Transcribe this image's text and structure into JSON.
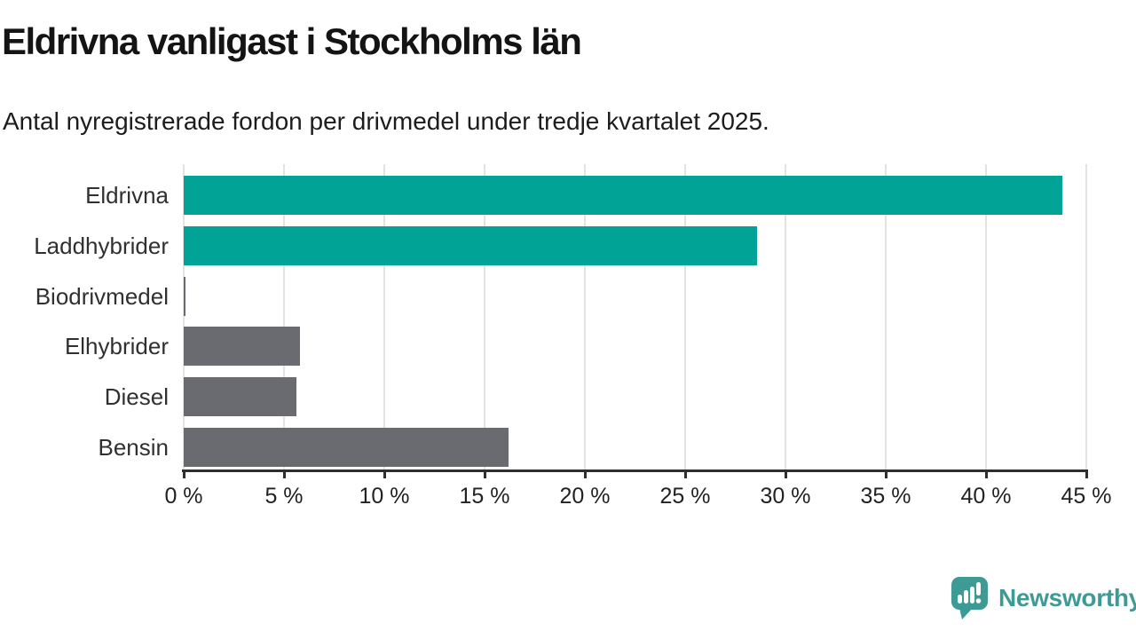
{
  "header": {
    "title": "Eldrivna vanligast i Stockholms län",
    "subtitle": "Antal nyregistrerade fordon per drivmedel under tredje kvartalet 2025."
  },
  "chart_data": {
    "type": "bar",
    "orientation": "horizontal",
    "title": "Eldrivna vanligast i Stockholms län",
    "subtitle": "Antal nyregistrerade fordon per drivmedel under tredje kvartalet 2025.",
    "categories": [
      "Eldrivna",
      "Laddhybrider",
      "Biodrivmedel",
      "Elhybrider",
      "Diesel",
      "Bensin"
    ],
    "values": [
      43.8,
      28.6,
      0.1,
      5.8,
      5.6,
      16.2
    ],
    "unit": "%",
    "bar_colors": [
      "#00a396",
      "#00a396",
      "#6a6a71",
      "#6a6a71",
      "#6a6a71",
      "#6a6a71"
    ],
    "xlabel": "",
    "ylabel": "",
    "xlim": [
      0,
      45
    ],
    "x_ticks": [
      0,
      5,
      10,
      15,
      20,
      25,
      30,
      35,
      40,
      45
    ],
    "x_tick_format": "{v} %",
    "grid": true,
    "legend": false
  },
  "colors": {
    "accent_teal": "#00a396",
    "neutral_gray": "#6a6a71",
    "gridline": "#e3e3e3",
    "axis": "#2e2e2e",
    "title_text": "#141414",
    "label_text": "#303030",
    "brand_teal": "#3e9a94"
  },
  "footer": {
    "brand": "Newsworthy"
  }
}
